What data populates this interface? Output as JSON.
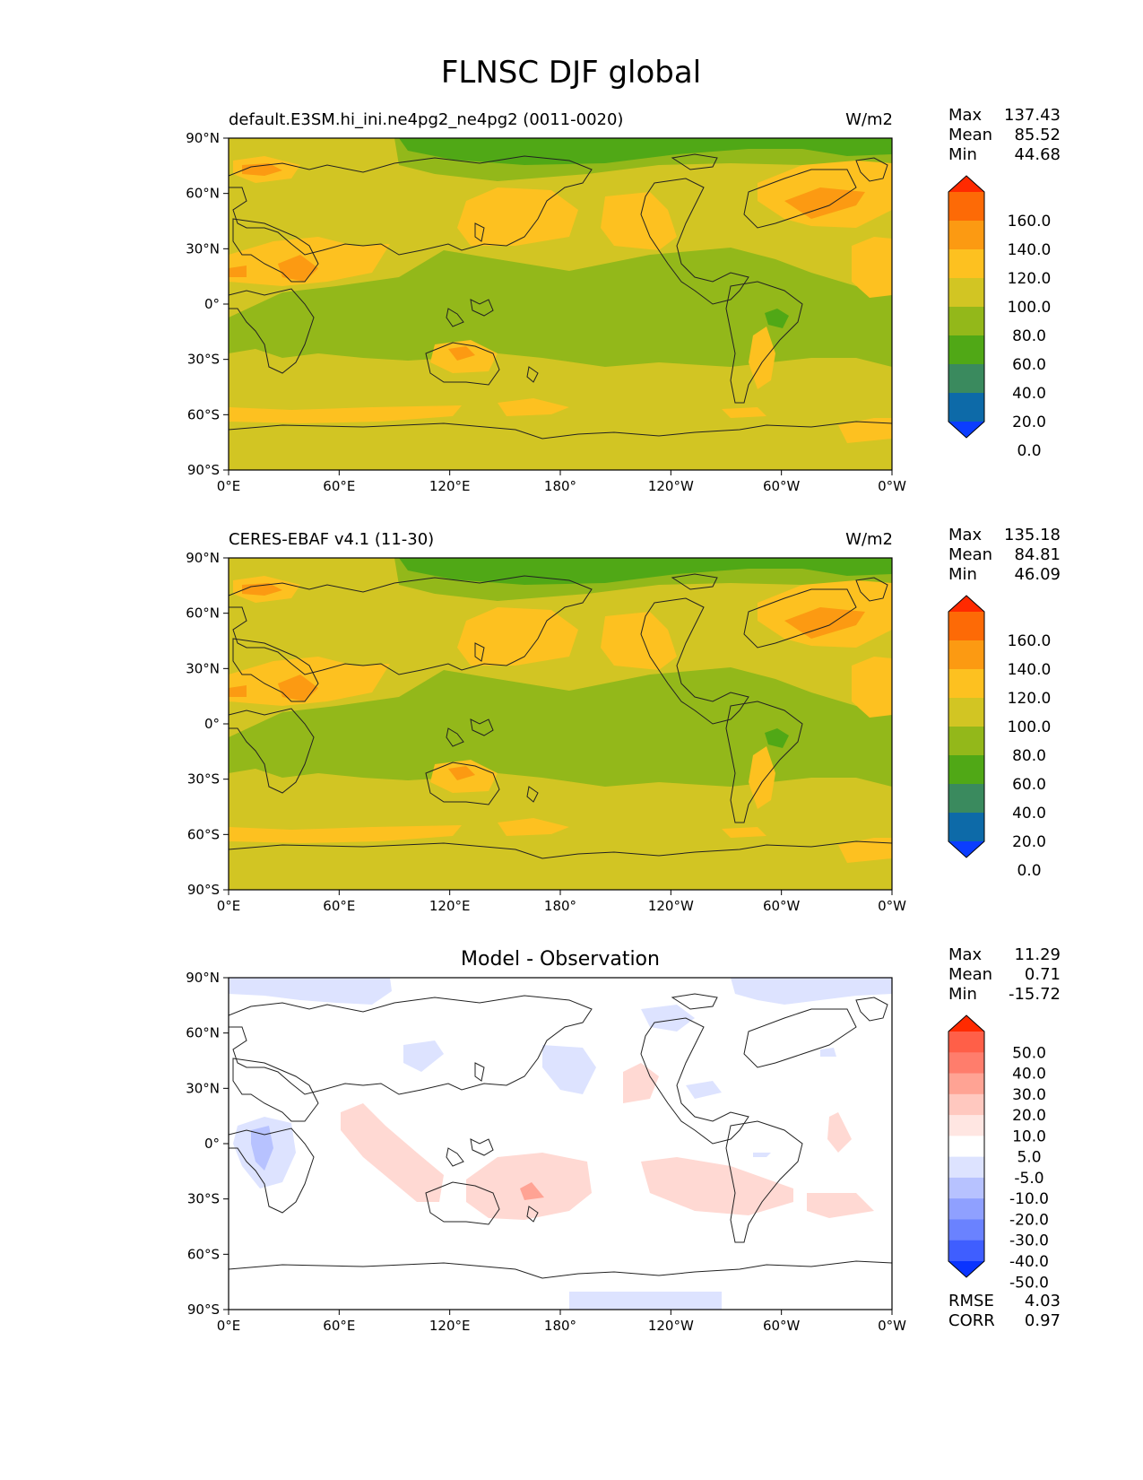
{
  "figure": {
    "title": "FLNSC DJF global"
  },
  "axes": {
    "y_ticks": [
      "90°N",
      "60°N",
      "30°N",
      "0°",
      "30°S",
      "60°S",
      "90°S"
    ],
    "x_ticks": [
      "0°E",
      "60°E",
      "120°E",
      "180°",
      "120°W",
      "60°W",
      "0°W"
    ]
  },
  "panels": [
    {
      "id": "model",
      "title": "default.E3SM.hi_ini.ne4pg2_ne4pg2 (0011-0020)",
      "units": "W/m2",
      "stats": [
        {
          "label": "Max",
          "value": "137.43"
        },
        {
          "label": "Mean",
          "value": "85.52"
        },
        {
          "label": "Min",
          "value": "44.68"
        }
      ],
      "colorbar": {
        "labels": [
          "160.0",
          "140.0",
          "120.0",
          "100.0",
          "80.0",
          "60.0",
          "40.0",
          "20.0",
          "0.0"
        ],
        "colors": [
          "#ff2a00",
          "#fd6a06",
          "#fc9a12",
          "#fdc120",
          "#d2c523",
          "#93b81a",
          "#50a816",
          "#3a8a5e",
          "#0d6aa8",
          "#0b3dff"
        ]
      }
    },
    {
      "id": "obs",
      "title": "CERES-EBAF v4.1 (11-30)",
      "units": "W/m2",
      "stats": [
        {
          "label": "Max",
          "value": "135.18"
        },
        {
          "label": "Mean",
          "value": "84.81"
        },
        {
          "label": "Min",
          "value": "46.09"
        }
      ],
      "colorbar": {
        "labels": [
          "160.0",
          "140.0",
          "120.0",
          "100.0",
          "80.0",
          "60.0",
          "40.0",
          "20.0",
          "0.0"
        ],
        "colors": [
          "#ff2a00",
          "#fd6a06",
          "#fc9a12",
          "#fdc120",
          "#d2c523",
          "#93b81a",
          "#50a816",
          "#3a8a5e",
          "#0d6aa8",
          "#0b3dff"
        ]
      }
    },
    {
      "id": "diff",
      "title": "Model - Observation",
      "units": "",
      "stats": [
        {
          "label": "Max",
          "value": "11.29"
        },
        {
          "label": "Mean",
          "value": "0.71"
        },
        {
          "label": "Min",
          "value": "-15.72"
        }
      ],
      "extra_stats": [
        {
          "label": "RMSE",
          "value": "4.03"
        },
        {
          "label": "CORR",
          "value": "0.97"
        }
      ],
      "colorbar": {
        "labels": [
          "50.0",
          "40.0",
          "30.0",
          "20.0",
          "10.0",
          "5.0",
          "-5.0",
          "-10.0",
          "-20.0",
          "-30.0",
          "-40.0",
          "-50.0"
        ],
        "colors": [
          "#ff2a00",
          "#ff5f48",
          "#ff7d6c",
          "#ffa394",
          "#ffc8bf",
          "#ffe6e2",
          "#ffffff",
          "#dde3ff",
          "#b7c2ff",
          "#8fa0ff",
          "#6a82ff",
          "#3f5eff",
          "#0a34ff"
        ]
      }
    }
  ]
}
